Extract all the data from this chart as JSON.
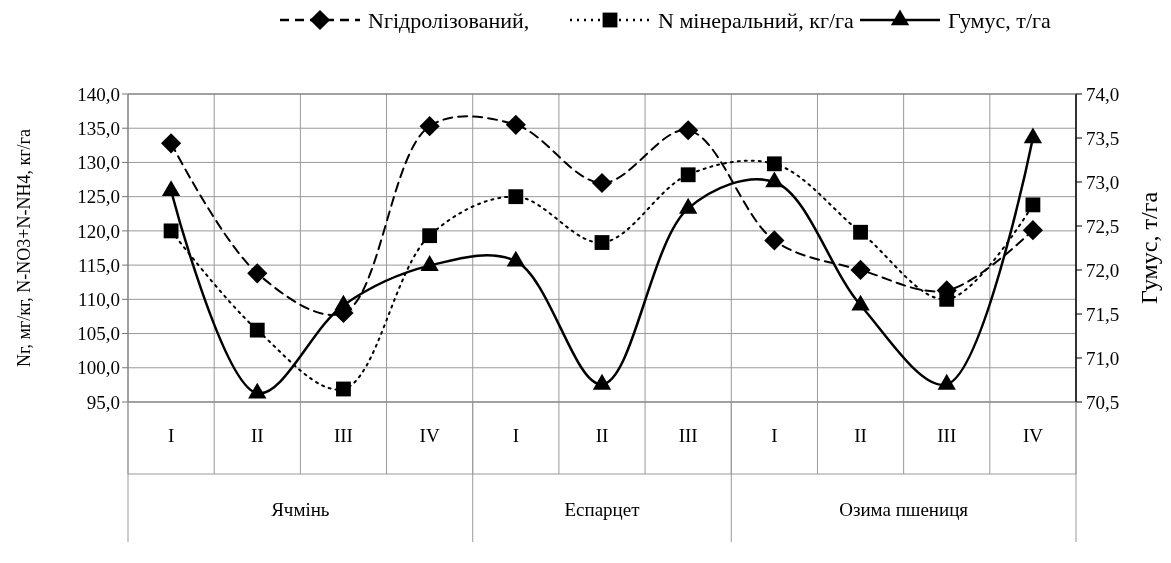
{
  "chart_data": {
    "type": "line",
    "categories": [
      "I",
      "II",
      "III",
      "IV",
      "I",
      "II",
      "III",
      "I",
      "II",
      "III",
      "IV"
    ],
    "annotations": [
      "Ячмінь",
      "Еспарцет",
      "Озима пшениця"
    ],
    "ylabel": "Nг, мг/кг, N-NO3+N-NH4, кг/га",
    "y2label": "Гумус, т/га",
    "ylim": [
      95,
      140
    ],
    "yticks": [
      {
        "value": 95,
        "label": "95,0"
      },
      {
        "value": 100,
        "label": "100,0"
      },
      {
        "value": 105,
        "label": "105,0"
      },
      {
        "value": 110,
        "label": "110,0"
      },
      {
        "value": 115,
        "label": "115,0"
      },
      {
        "value": 120,
        "label": "120,0"
      },
      {
        "value": 125,
        "label": "125,0"
      },
      {
        "value": 130,
        "label": "130,0"
      },
      {
        "value": 135,
        "label": "135,0"
      },
      {
        "value": 140,
        "label": "140,0"
      }
    ],
    "y2lim": [
      70.5,
      74
    ],
    "y2ticks": [
      {
        "value": 70.5,
        "label": "70,5"
      },
      {
        "value": 71,
        "label": "71,0"
      },
      {
        "value": 71.5,
        "label": "71,5"
      },
      {
        "value": 72,
        "label": "72,0"
      },
      {
        "value": 72.5,
        "label": "72,5"
      },
      {
        "value": 73,
        "label": "73,0"
      },
      {
        "value": 73.5,
        "label": "73,5"
      },
      {
        "value": 74,
        "label": "74,0"
      }
    ],
    "grid": true,
    "legend": "top",
    "series": [
      {
        "name": "Nгідролізований,",
        "color": "#000000",
        "marker": "diamond",
        "line_style": "dashed",
        "values": [
          132.8,
          113.8,
          108,
          135.3,
          135.5,
          127,
          134.7,
          118.6,
          114.3,
          111.3,
          120.1
        ]
      },
      {
        "name": "N мінеральний, кг/га",
        "color": "#000000",
        "marker": "square",
        "line_style": "dotted",
        "values": [
          120,
          105.5,
          96.9,
          119.3,
          125,
          118.3,
          128.2,
          129.8,
          119.8,
          110,
          123.8
        ]
      },
      {
        "name": "Гумус, т/га",
        "color": "#000000",
        "marker": "triangle",
        "line_style": "solid",
        "axis": "y2",
        "values": [
          72.9,
          70.6,
          71.6,
          72.05,
          72.1,
          70.7,
          72.7,
          73.0,
          71.6,
          70.7,
          73.5
        ]
      }
    ]
  }
}
